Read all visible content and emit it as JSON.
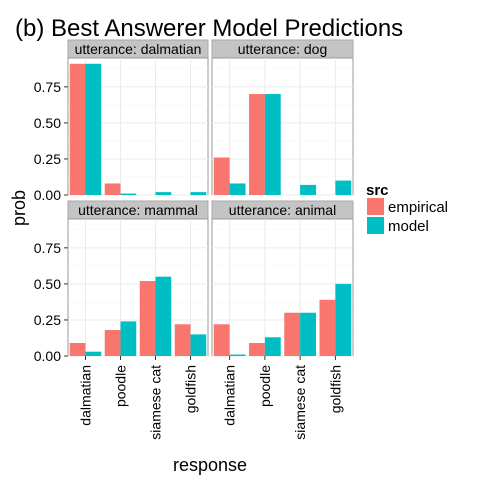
{
  "chart_data": {
    "type": "bar",
    "title": "(b) Best Answerer Model Predictions",
    "xlabel": "response",
    "ylabel": "prob",
    "categories": [
      "dalmatian",
      "poodle",
      "siamese cat",
      "goldfish"
    ],
    "y_ticks": [
      "0.00",
      "0.25",
      "0.50",
      "0.75"
    ],
    "ylim": [
      0,
      0.95
    ],
    "facet_rows_share_y": false,
    "grid": true,
    "legend": {
      "title": "src",
      "placement": "right",
      "items": [
        {
          "name": "empirical",
          "color": "#F8766D"
        },
        {
          "name": "model",
          "color": "#00BFC4"
        }
      ]
    },
    "facets": [
      {
        "strip": "utterance: dalmatian",
        "series": [
          {
            "name": "empirical",
            "values": [
              0.91,
              0.08,
              0.0,
              0.0
            ]
          },
          {
            "name": "model",
            "values": [
              0.91,
              0.01,
              0.02,
              0.02
            ]
          }
        ]
      },
      {
        "strip": "utterance: dog",
        "series": [
          {
            "name": "empirical",
            "values": [
              0.26,
              0.7,
              0.0,
              0.0
            ]
          },
          {
            "name": "model",
            "values": [
              0.08,
              0.7,
              0.07,
              0.1
            ]
          }
        ]
      },
      {
        "strip": "utterance: mammal",
        "series": [
          {
            "name": "empirical",
            "values": [
              0.09,
              0.18,
              0.52,
              0.22
            ]
          },
          {
            "name": "model",
            "values": [
              0.03,
              0.24,
              0.55,
              0.15
            ]
          }
        ]
      },
      {
        "strip": "utterance: animal",
        "series": [
          {
            "name": "empirical",
            "values": [
              0.22,
              0.09,
              0.3,
              0.39
            ]
          },
          {
            "name": "model",
            "values": [
              0.01,
              0.13,
              0.3,
              0.5
            ]
          }
        ]
      }
    ]
  }
}
